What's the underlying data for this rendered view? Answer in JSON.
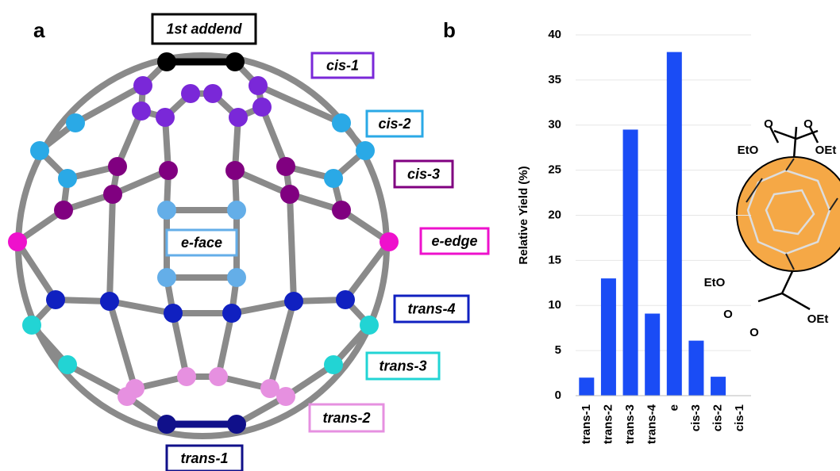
{
  "panels": {
    "a": "a",
    "b": "b"
  },
  "diagram": {
    "labels": [
      {
        "text": "1st addend",
        "color": "#000000"
      },
      {
        "text": "cis-1",
        "color": "#7a28d8"
      },
      {
        "text": "cis-2",
        "color": "#2aa9e6"
      },
      {
        "text": "cis-3",
        "color": "#800080"
      },
      {
        "text": "e-edge",
        "color": "#ee11cc"
      },
      {
        "text": "e-face",
        "color": "#64aee8"
      },
      {
        "text": "trans-4",
        "color": "#1020c0"
      },
      {
        "text": "trans-3",
        "color": "#22d4d4"
      },
      {
        "text": "trans-2",
        "color": "#e690e0"
      },
      {
        "text": "trans-1",
        "color": "#10108a"
      }
    ]
  },
  "molecule": {
    "labels": [
      "O",
      "O",
      "EtO",
      "OEt",
      "EtO",
      "O",
      "OEt",
      "O"
    ]
  },
  "chart_data": {
    "type": "bar",
    "y_label": "Relative Yield (%)",
    "categories": [
      "trans-1",
      "trans-2",
      "trans-3",
      "trans-4",
      "e",
      "cis-3",
      "cis-2",
      "cis-1"
    ],
    "values": [
      2,
      13,
      29.5,
      9.1,
      38.1,
      6.1,
      2.1,
      0
    ],
    "color": "#1a4cf5",
    "ylim": [
      0,
      40
    ],
    "yticks": [
      0,
      5,
      10,
      15,
      20,
      25,
      30,
      35,
      40
    ],
    "grid": true
  }
}
